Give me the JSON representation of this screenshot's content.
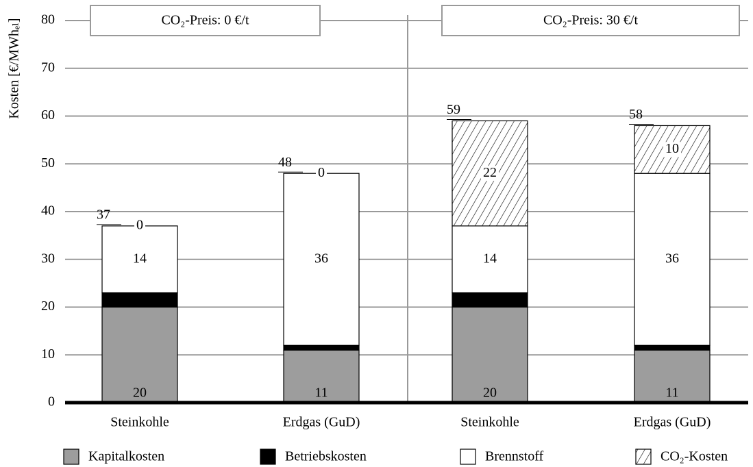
{
  "chart_data": {
    "type": "stacked_bar",
    "panels": [
      "CO₂-Preis: 0 €/t",
      "CO₂-Preis: 30 €/t"
    ],
    "ylabel": "Kosten [€/MWhₑₗ]",
    "categories": [
      "Steinkohle",
      "Erdgas (GuD)",
      "Steinkohle",
      "Erdgas (GuD)"
    ],
    "series": [
      {
        "name": "Kapitalkosten",
        "color": "#9d9d9d",
        "values": [
          20,
          11,
          20,
          11
        ]
      },
      {
        "name": "Betriebskosten",
        "color": "#000000",
        "values": [
          3,
          1,
          3,
          1
        ]
      },
      {
        "name": "Brennstoff",
        "color": "#ffffff",
        "values": [
          14,
          36,
          14,
          36
        ]
      },
      {
        "name": "CO₂-Kosten",
        "color": "#ffffff",
        "pattern": "hatch",
        "values": [
          0,
          0,
          22,
          10
        ]
      }
    ],
    "totals": [
      37,
      48,
      59,
      58
    ],
    "ylim": [
      0,
      80
    ],
    "yticks": [
      0,
      10,
      20,
      30,
      40,
      50,
      60,
      70,
      80
    ],
    "grid": true,
    "legend": "bottom"
  }
}
